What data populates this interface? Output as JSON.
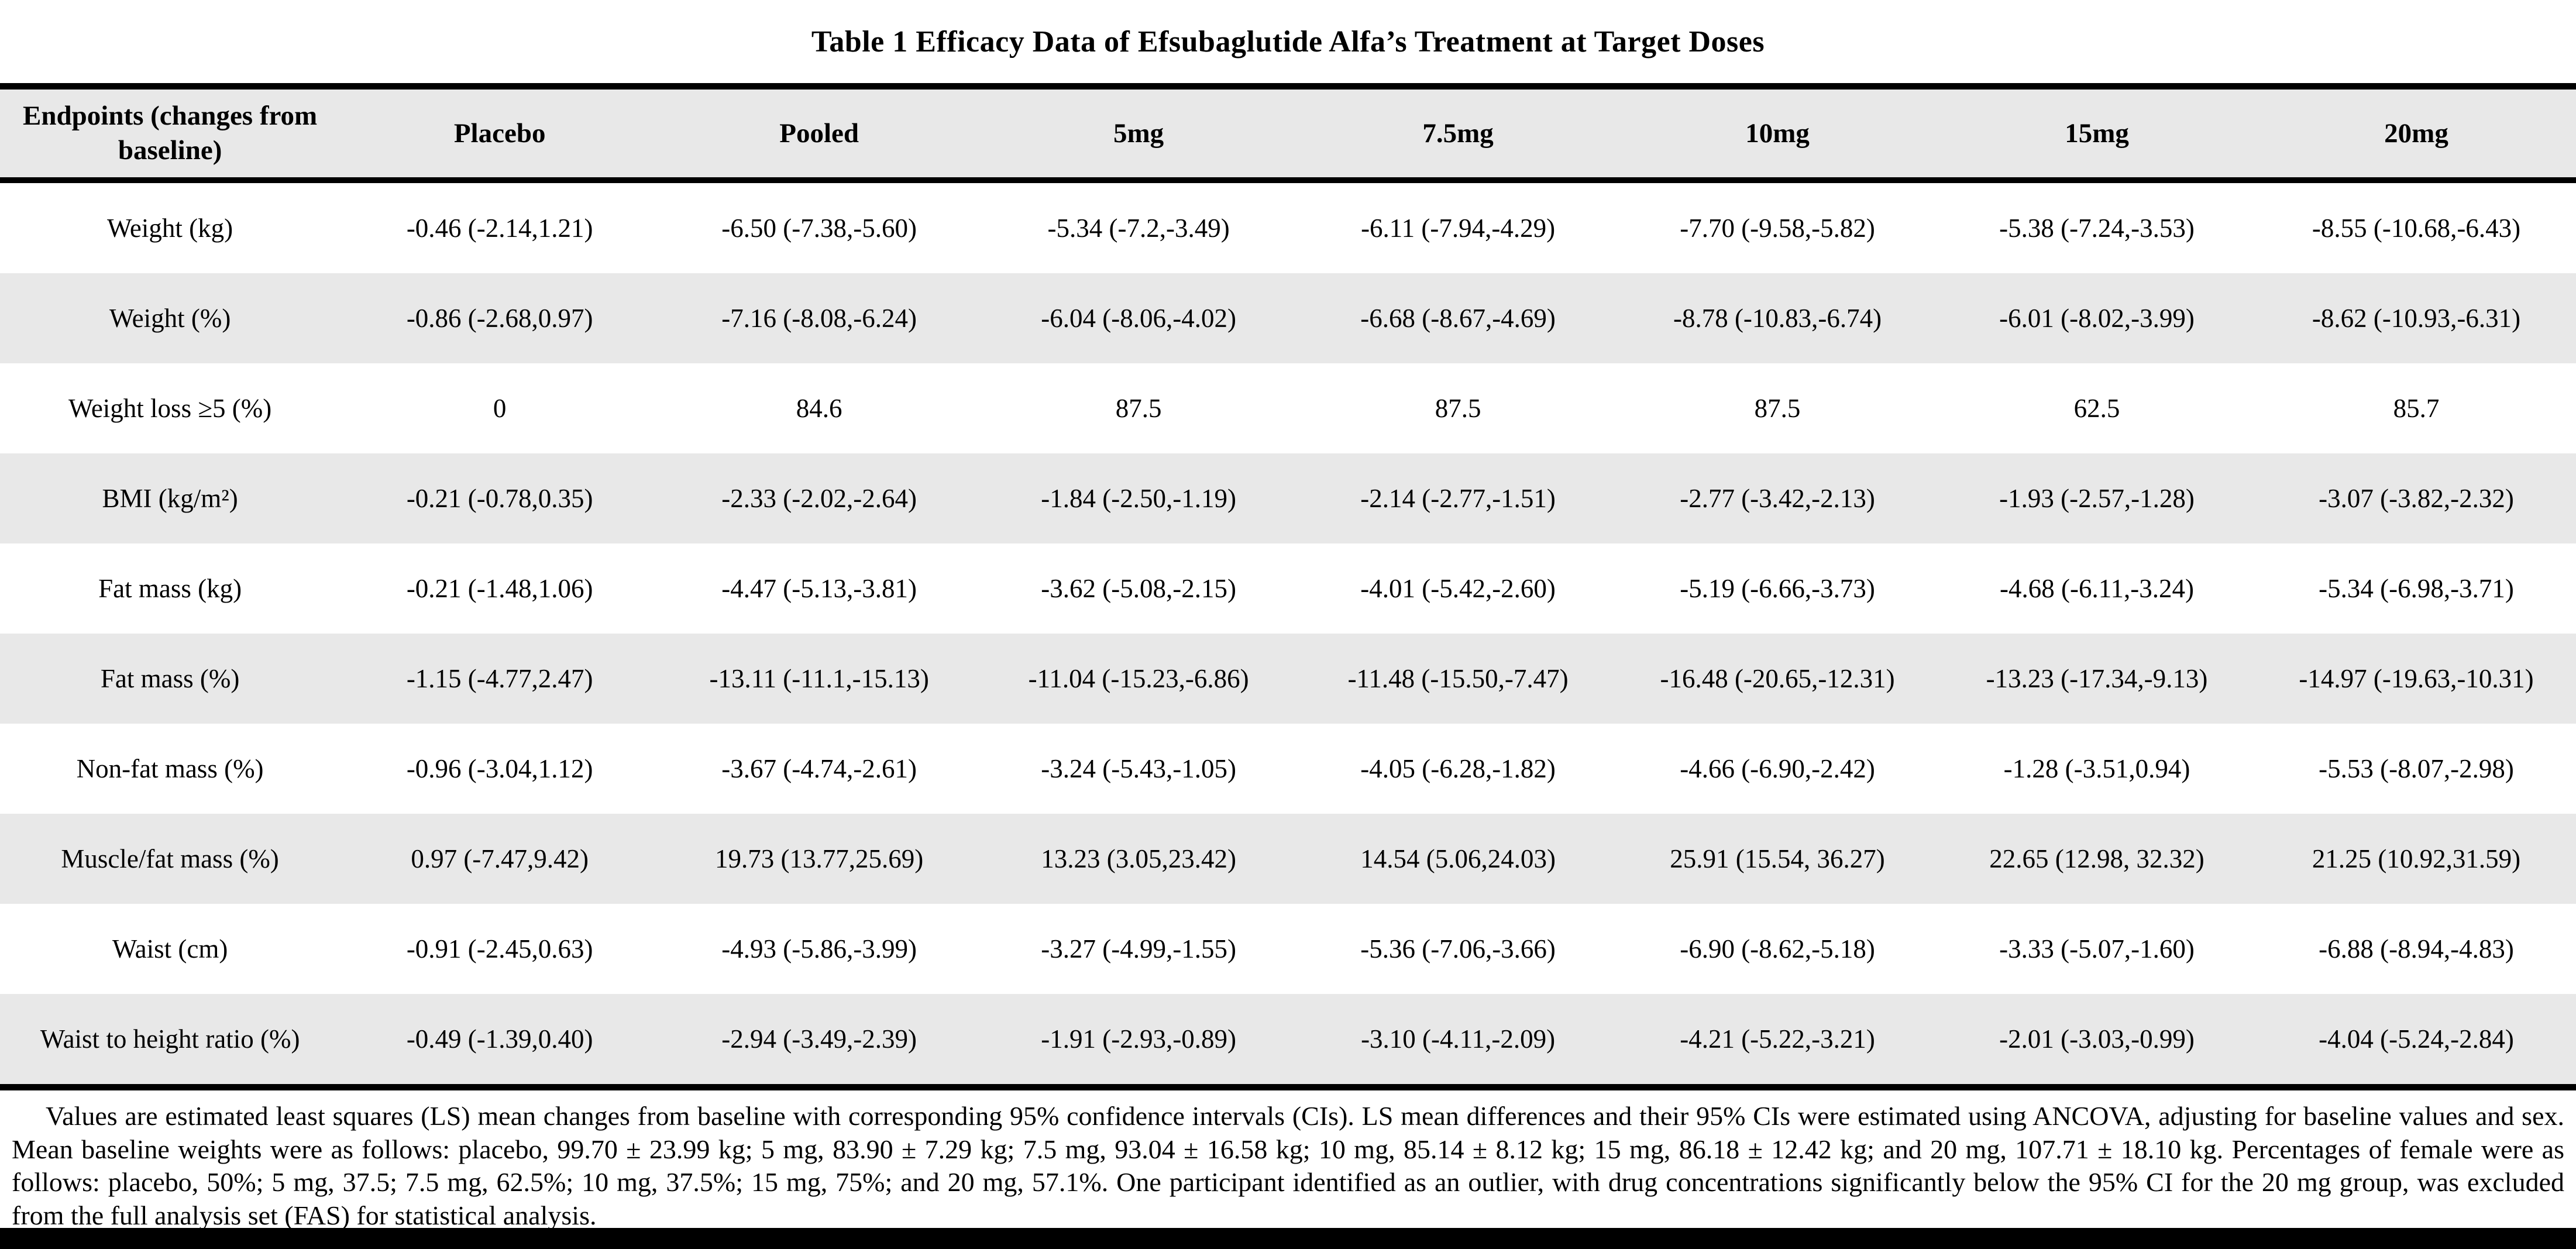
{
  "page": {
    "title": "Table 1 Efficacy Data of Efsubaglutide Alfa’s Treatment at Target Doses"
  },
  "colors": {
    "stripe": "#e8e8e8",
    "text": "#000000",
    "rule": "#000000"
  },
  "table": {
    "columns": [
      "Endpoints (changes from baseline)",
      "Placebo",
      "Pooled",
      "5mg",
      "7.5mg",
      "10mg",
      "15mg",
      "20mg"
    ],
    "rows": [
      {
        "endpoint": "Weight (kg)",
        "values": [
          "-0.46 (-2.14,1.21)",
          "-6.50 (-7.38,-5.60)",
          "-5.34 (-7.2,-3.49)",
          "-6.11 (-7.94,-4.29)",
          "-7.70 (-9.58,-5.82)",
          "-5.38 (-7.24,-3.53)",
          "-8.55 (-10.68,-6.43)"
        ]
      },
      {
        "endpoint": "Weight (%)",
        "values": [
          "-0.86 (-2.68,0.97)",
          "-7.16 (-8.08,-6.24)",
          "-6.04 (-8.06,-4.02)",
          "-6.68 (-8.67,-4.69)",
          "-8.78 (-10.83,-6.74)",
          "-6.01 (-8.02,-3.99)",
          "-8.62 (-10.93,-6.31)"
        ]
      },
      {
        "endpoint": "Weight loss ≥5 (%)",
        "values": [
          "0",
          "84.6",
          "87.5",
          "87.5",
          "87.5",
          "62.5",
          "85.7"
        ]
      },
      {
        "endpoint": "BMI (kg/m²)",
        "values": [
          "-0.21 (-0.78,0.35)",
          "-2.33 (-2.02,-2.64)",
          "-1.84 (-2.50,-1.19)",
          "-2.14 (-2.77,-1.51)",
          "-2.77 (-3.42,-2.13)",
          "-1.93 (-2.57,-1.28)",
          "-3.07 (-3.82,-2.32)"
        ]
      },
      {
        "endpoint": "Fat mass (kg)",
        "values": [
          "-0.21 (-1.48,1.06)",
          "-4.47 (-5.13,-3.81)",
          "-3.62 (-5.08,-2.15)",
          "-4.01 (-5.42,-2.60)",
          "-5.19 (-6.66,-3.73)",
          "-4.68 (-6.11,-3.24)",
          "-5.34 (-6.98,-3.71)"
        ]
      },
      {
        "endpoint": "Fat mass (%)",
        "values": [
          "-1.15 (-4.77,2.47)",
          "-13.11 (-11.1,-15.13)",
          "-11.04 (-15.23,-6.86)",
          "-11.48 (-15.50,-7.47)",
          "-16.48 (-20.65,-12.31)",
          "-13.23 (-17.34,-9.13)",
          "-14.97 (-19.63,-10.31)"
        ]
      },
      {
        "endpoint": "Non-fat mass (%)",
        "values": [
          "-0.96 (-3.04,1.12)",
          "-3.67 (-4.74,-2.61)",
          "-3.24 (-5.43,-1.05)",
          "-4.05 (-6.28,-1.82)",
          "-4.66 (-6.90,-2.42)",
          "-1.28 (-3.51,0.94)",
          "-5.53 (-8.07,-2.98)"
        ]
      },
      {
        "endpoint": "Muscle/fat mass (%)",
        "values": [
          "0.97 (-7.47,9.42)",
          "19.73 (13.77,25.69)",
          "13.23 (3.05,23.42)",
          "14.54 (5.06,24.03)",
          "25.91 (15.54, 36.27)",
          "22.65 (12.98, 32.32)",
          "21.25 (10.92,31.59)"
        ]
      },
      {
        "endpoint": "Waist (cm)",
        "values": [
          "-0.91 (-2.45,0.63)",
          "-4.93 (-5.86,-3.99)",
          "-3.27 (-4.99,-1.55)",
          "-5.36 (-7.06,-3.66)",
          "-6.90 (-8.62,-5.18)",
          "-3.33 (-5.07,-1.60)",
          "-6.88 (-8.94,-4.83)"
        ]
      },
      {
        "endpoint": "Waist to height ratio (%)",
        "values": [
          "-0.49 (-1.39,0.40)",
          "-2.94 (-3.49,-2.39)",
          "-1.91 (-2.93,-0.89)",
          "-3.10 (-4.11,-2.09)",
          "-4.21 (-5.22,-3.21)",
          "-2.01 (-3.03,-0.99)",
          "-4.04 (-5.24,-2.84)"
        ]
      }
    ],
    "footnote": "Values are estimated least squares (LS) mean changes from baseline with corresponding 95% confidence intervals (CIs). LS mean differences and their 95% CIs were estimated using ANCOVA, adjusting for baseline values and sex. Mean baseline weights were as follows: placebo, 99.70 ± 23.99 kg; 5 mg, 83.90 ± 7.29 kg; 7.5 mg, 93.04 ± 16.58 kg; 10 mg, 85.14 ± 8.12 kg; 15 mg, 86.18 ± 12.42 kg; and 20 mg, 107.71 ± 18.10 kg. Percentages of female were as follows: placebo, 50%; 5 mg, 37.5; 7.5 mg, 62.5%; 10 mg, 37.5%; 15 mg, 75%; and 20 mg, 57.1%. One participant identified as an outlier, with drug concentrations significantly below the 95% CI for the 20 mg group, was excluded from the full analysis set (FAS) for statistical analysis."
  }
}
